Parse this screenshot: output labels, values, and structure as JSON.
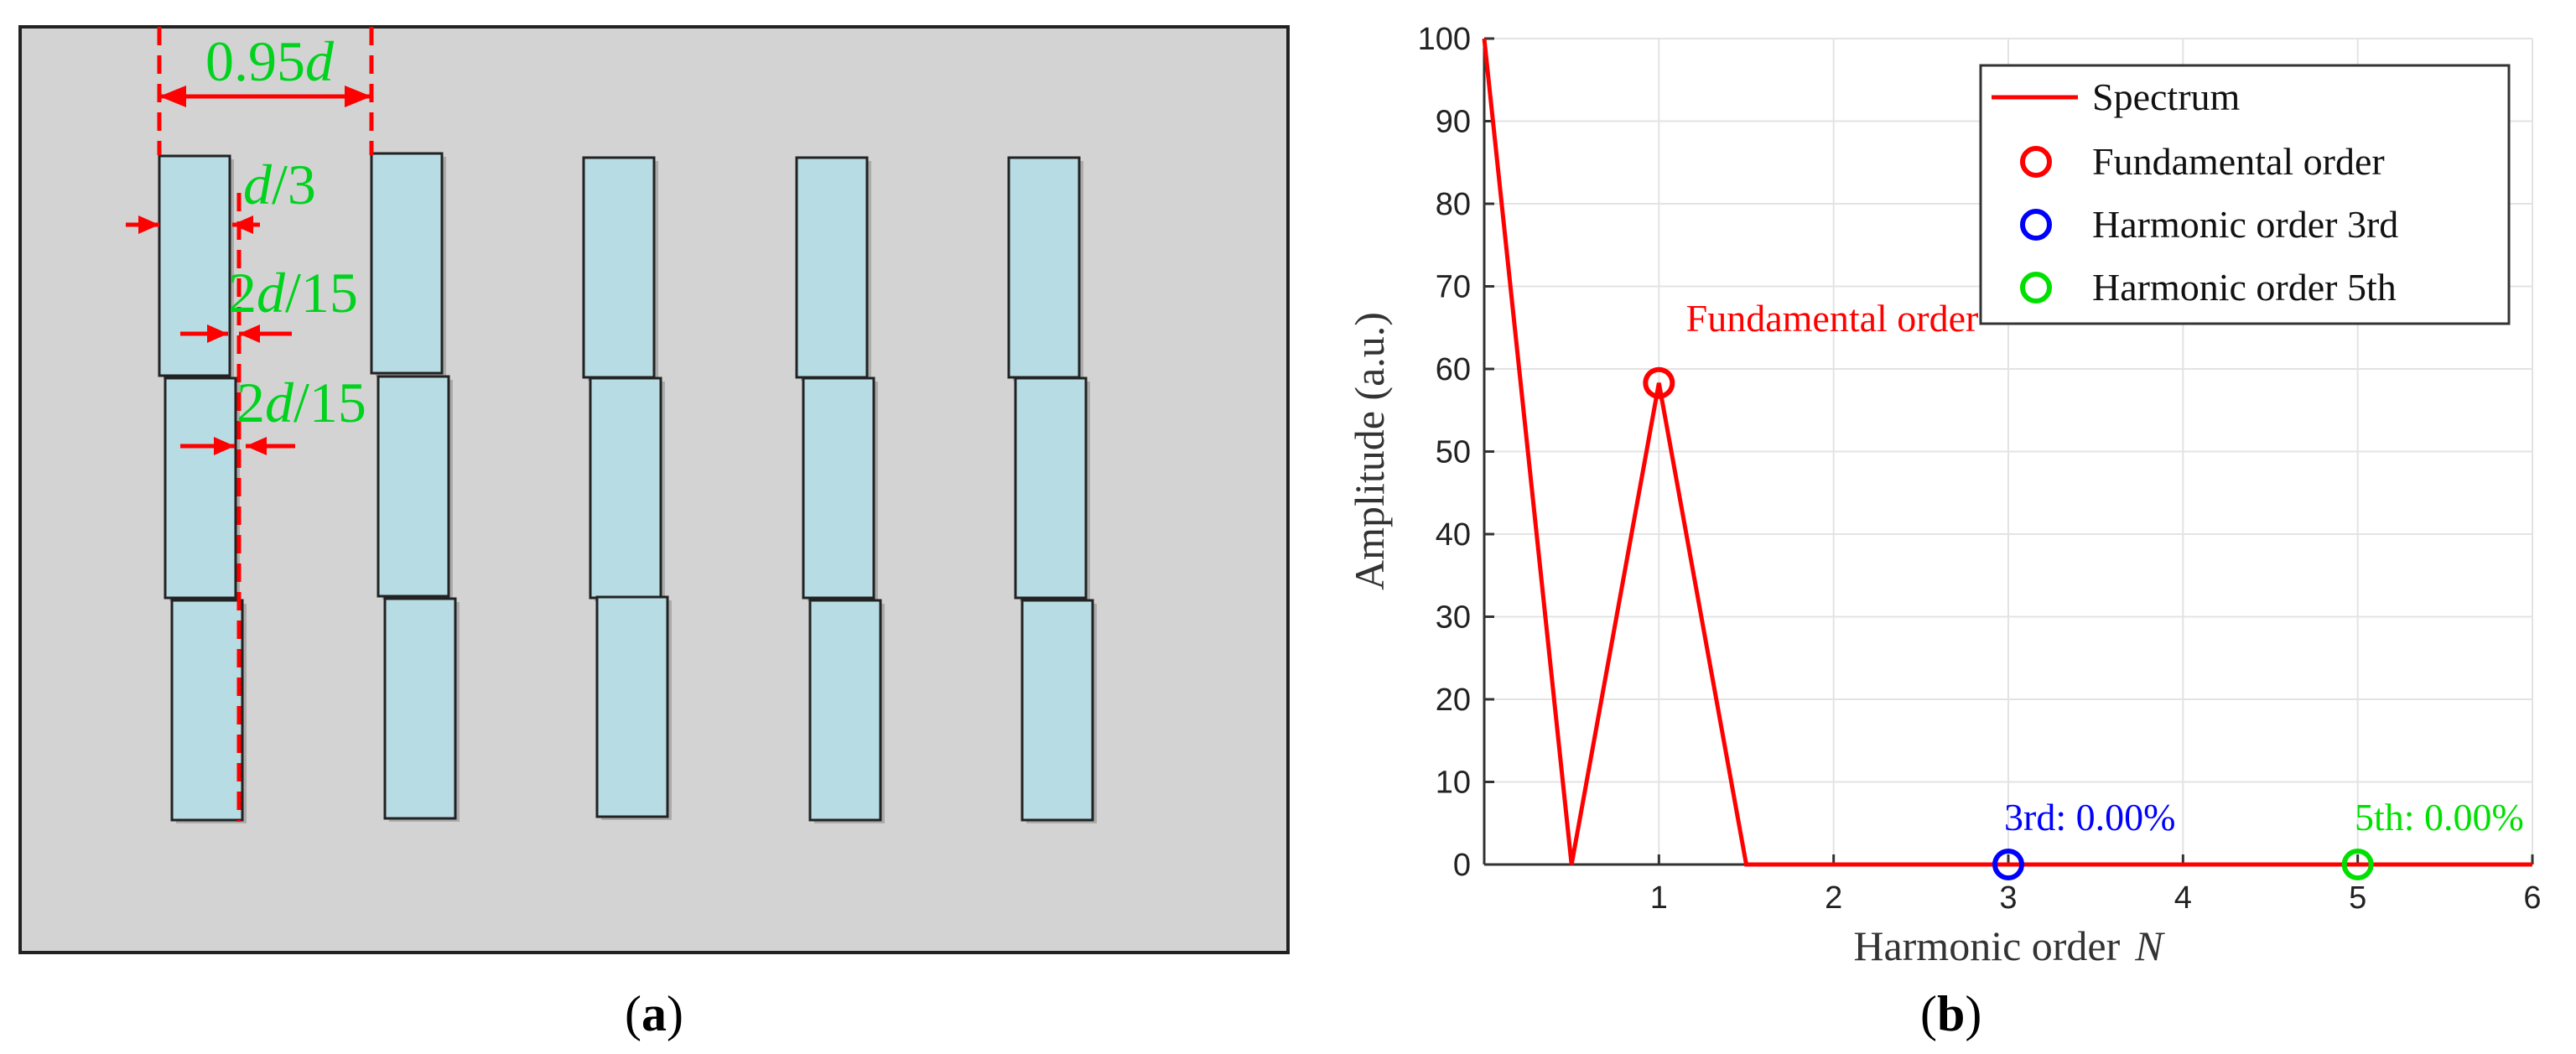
{
  "panel_a": {
    "label": "a",
    "colors": {
      "background": "#d3d3d3",
      "block_fill": "#b8dce4",
      "block_stroke": "#222222",
      "dimension_line": "#ff0000",
      "dimension_text": "#00d21e"
    },
    "dimension_labels": {
      "width": {
        "num": "0.95",
        "var": "d",
        "rest": ""
      },
      "gap_third": {
        "num": "",
        "var": "d",
        "rest": "/3"
      },
      "offset_upper": {
        "num": "2",
        "var": "d",
        "rest": "/15"
      },
      "offset_lower": {
        "num": "2",
        "var": "d",
        "rest": "/15"
      }
    }
  },
  "panel_b": {
    "label": "b",
    "annotations": {
      "fundamental": "Fundamental order",
      "third": "3rd: 0.00%",
      "fifth": "5th: 0.00%"
    }
  },
  "chart_data": {
    "type": "line",
    "xlabel": "Harmonic order",
    "xlabel_var": "N",
    "ylabel": "Amplitude (a.u.)",
    "xlim": [
      0,
      6
    ],
    "ylim": [
      0,
      100
    ],
    "xticks": [
      1,
      2,
      3,
      4,
      5,
      6
    ],
    "yticks": [
      0,
      10,
      20,
      30,
      40,
      50,
      60,
      70,
      80,
      90,
      100
    ],
    "grid": true,
    "legend_position": "top-right",
    "series": [
      {
        "name": "Spectrum",
        "kind": "line",
        "color": "#ff0000",
        "x": [
          0,
          0.5,
          1,
          1.5,
          2,
          2.5,
          3,
          3.5,
          4,
          4.5,
          5,
          5.5,
          6
        ],
        "y": [
          100,
          0,
          58.3,
          0,
          0,
          0,
          0,
          0,
          0,
          0,
          0,
          0,
          0
        ]
      },
      {
        "name": "Fundamental order",
        "kind": "marker",
        "color": "#ff0000",
        "x": [
          1
        ],
        "y": [
          58.3
        ]
      },
      {
        "name": "Harmonic order 3rd",
        "kind": "marker",
        "color": "#0000ff",
        "x": [
          3
        ],
        "y": [
          0
        ]
      },
      {
        "name": "Harmonic order 5th",
        "kind": "marker",
        "color": "#00e000",
        "x": [
          5
        ],
        "y": [
          0
        ]
      }
    ]
  }
}
